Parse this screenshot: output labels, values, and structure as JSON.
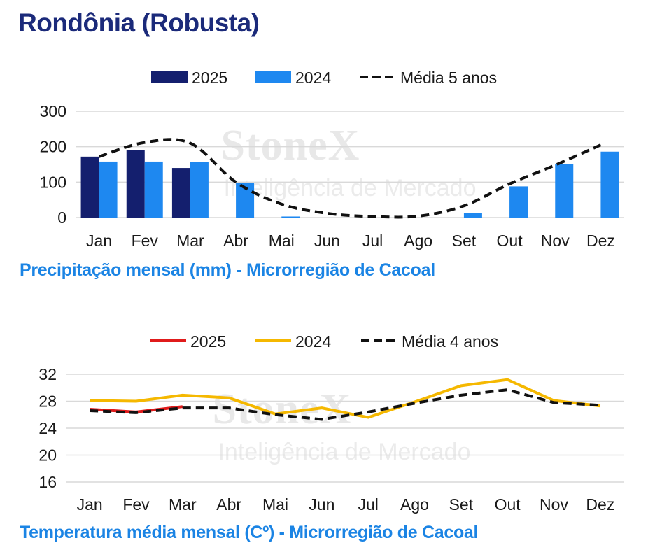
{
  "page": {
    "title": "Rondônia (Robusta)",
    "watermark": {
      "brand": "StoneX",
      "tagline": "Inteligência de Mercado"
    }
  },
  "colors": {
    "title": "#1b2a7a",
    "caption": "#1b84e4",
    "bar_2025": "#141f6e",
    "bar_2024": "#1e88f0",
    "line_2025": "#e01b1b",
    "line_2024": "#f5b800",
    "avg": "#111111",
    "grid": "#d9d9d9"
  },
  "chart_data": [
    {
      "type": "bar",
      "caption": "Precipitação mensal (mm) - Microrregião de Cacoal",
      "categories": [
        "Jan",
        "Fev",
        "Mar",
        "Abr",
        "Mai",
        "Jun",
        "Jul",
        "Ago",
        "Set",
        "Out",
        "Nov",
        "Dez"
      ],
      "series": [
        {
          "name": "2025",
          "kind": "bar",
          "values": [
            172,
            190,
            140,
            null,
            null,
            null,
            null,
            null,
            null,
            null,
            null,
            null
          ]
        },
        {
          "name": "2024",
          "kind": "bar",
          "values": [
            158,
            158,
            156,
            98,
            3,
            0,
            0,
            0,
            12,
            88,
            152,
            186
          ]
        },
        {
          "name": "Média 5 anos",
          "kind": "line-dashed",
          "values": [
            172,
            212,
            210,
            100,
            38,
            12,
            3,
            4,
            33,
            95,
            148,
            205
          ]
        }
      ],
      "yticks": [
        "300",
        "200",
        "100",
        "0"
      ],
      "ylim": [
        0,
        300
      ],
      "grid": true,
      "legend_position": "top-center"
    },
    {
      "type": "line",
      "caption": "Temperatura média mensal (Cº) - Microrregião de Cacoal",
      "categories": [
        "Jan",
        "Fev",
        "Mar",
        "Abr",
        "Mai",
        "Jun",
        "Jul",
        "Ago",
        "Set",
        "Out",
        "Nov",
        "Dez"
      ],
      "series": [
        {
          "name": "2025",
          "kind": "line",
          "values": [
            26.8,
            26.4,
            27.2,
            null,
            null,
            null,
            null,
            null,
            null,
            null,
            null,
            null
          ]
        },
        {
          "name": "2024",
          "kind": "line",
          "values": [
            28.1,
            28.0,
            28.9,
            28.5,
            26.1,
            27.0,
            25.6,
            27.9,
            30.3,
            31.2,
            28.1,
            27.3
          ]
        },
        {
          "name": "Média 4 anos",
          "kind": "line-dashed",
          "values": [
            26.6,
            26.3,
            27.0,
            27.0,
            26.0,
            25.3,
            26.4,
            27.7,
            28.9,
            29.7,
            27.8,
            27.4
          ]
        }
      ],
      "yticks": [
        "32",
        "28",
        "24",
        "20",
        "16"
      ],
      "ylim": [
        16,
        32
      ],
      "grid": true,
      "legend_position": "top-center"
    }
  ]
}
